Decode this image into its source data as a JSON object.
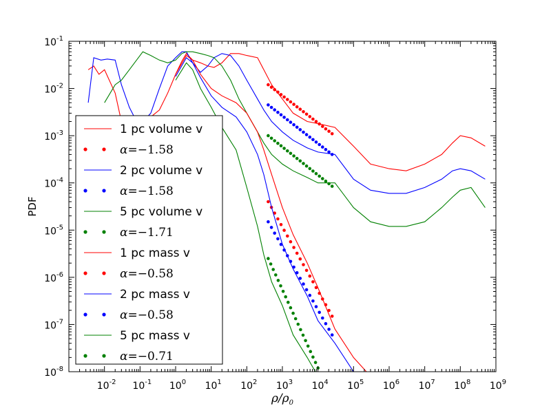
{
  "chart_data": {
    "type": "line",
    "xscale": "log",
    "yscale": "log",
    "xlim": [
      0.001,
      1000000000
    ],
    "ylim": [
      1e-08,
      0.1
    ],
    "xlabel": "ρ/ρ0",
    "ylabel": "PDF",
    "x_ticks": [
      {
        "base": "10",
        "exp": "-2",
        "value": 0.01
      },
      {
        "base": "10",
        "exp": "-1",
        "value": 0.1
      },
      {
        "base": "10",
        "exp": "0",
        "value": 1
      },
      {
        "base": "10",
        "exp": "1",
        "value": 10
      },
      {
        "base": "10",
        "exp": "2",
        "value": 100
      },
      {
        "base": "10",
        "exp": "3",
        "value": 1000
      },
      {
        "base": "10",
        "exp": "4",
        "value": 10000
      },
      {
        "base": "10",
        "exp": "5",
        "value": 100000
      },
      {
        "base": "10",
        "exp": "6",
        "value": 1000000
      },
      {
        "base": "10",
        "exp": "7",
        "value": 10000000
      },
      {
        "base": "10",
        "exp": "8",
        "value": 100000000
      },
      {
        "base": "10",
        "exp": "9",
        "value": 1000000000
      }
    ],
    "y_ticks": [
      {
        "base": "10",
        "exp": "-8",
        "value": 1e-08
      },
      {
        "base": "10",
        "exp": "-7",
        "value": 1e-07
      },
      {
        "base": "10",
        "exp": "-6",
        "value": 1e-06
      },
      {
        "base": "10",
        "exp": "-5",
        "value": 1e-05
      },
      {
        "base": "10",
        "exp": "-4",
        "value": 0.0001
      },
      {
        "base": "10",
        "exp": "-3",
        "value": 0.001
      },
      {
        "base": "10",
        "exp": "-2",
        "value": 0.01
      },
      {
        "base": "10",
        "exp": "-1",
        "value": 0.1
      }
    ],
    "legend": {
      "location": "lower-left"
    },
    "series": [
      {
        "name": "1 pc volume v",
        "style": "line",
        "color": "#ff0000",
        "x": [
          0.0035,
          0.005,
          0.007,
          0.01,
          0.02,
          0.03,
          0.05,
          0.08,
          0.12,
          0.2,
          0.35,
          0.6,
          1,
          1.5,
          2,
          3,
          5,
          8,
          12,
          20,
          35,
          60,
          100,
          200,
          300,
          500,
          1000,
          2000,
          5000,
          10000,
          30000,
          100000,
          300000,
          1000000,
          3000000,
          10000000,
          30000000,
          60000000,
          100000000,
          200000000,
          500000000
        ],
        "y": [
          0.025,
          0.03,
          0.02,
          0.025,
          0.008,
          0.002,
          0.0015,
          0.0015,
          0.0015,
          0.0025,
          0.0035,
          0.008,
          0.02,
          0.038,
          0.055,
          0.04,
          0.035,
          0.03,
          0.028,
          0.035,
          0.055,
          0.055,
          0.05,
          0.045,
          0.025,
          0.012,
          0.006,
          0.003,
          0.002,
          0.0018,
          0.0015,
          0.0006,
          0.00025,
          0.0002,
          0.00018,
          0.00025,
          0.0004,
          0.0007,
          0.001,
          0.0009,
          0.0006
        ]
      },
      {
        "name": "α=−1.58",
        "label_alpha": "α",
        "label_value": "=−1.58",
        "style": "dots",
        "color": "#ff0000",
        "slope": -1.58,
        "x": [
          400,
          25000
        ],
        "y": [
          0.012,
          0.0011
        ]
      },
      {
        "name": "2 pc volume v",
        "style": "line",
        "color": "#0000ff",
        "x": [
          0.0035,
          0.005,
          0.008,
          0.012,
          0.02,
          0.03,
          0.05,
          0.08,
          0.12,
          0.2,
          0.35,
          0.6,
          1,
          1.5,
          2,
          3,
          5,
          8,
          12,
          20,
          35,
          60,
          100,
          200,
          300,
          500,
          1000,
          2000,
          5000,
          10000,
          30000,
          100000,
          300000,
          1000000,
          3000000,
          10000000,
          30000000,
          60000000,
          100000000,
          200000000,
          500000000
        ],
        "y": [
          0.005,
          0.045,
          0.04,
          0.042,
          0.04,
          0.012,
          0.004,
          0.002,
          0.002,
          0.003,
          0.01,
          0.03,
          0.045,
          0.06,
          0.06,
          0.035,
          0.022,
          0.03,
          0.045,
          0.055,
          0.05,
          0.03,
          0.015,
          0.006,
          0.0035,
          0.002,
          0.0012,
          0.0008,
          0.00055,
          0.00045,
          0.0004,
          0.00012,
          7e-05,
          6e-05,
          6e-05,
          8e-05,
          0.00012,
          0.00018,
          0.0002,
          0.00018,
          0.00012
        ]
      },
      {
        "name": "α=−1.58",
        "label_alpha": "α",
        "label_value": "=−1.58",
        "style": "dots",
        "color": "#0000ff",
        "slope": -1.58,
        "x": [
          400,
          25000
        ],
        "y": [
          0.0045,
          0.0004
        ]
      },
      {
        "name": "5 pc volume v",
        "style": "line",
        "color": "#008000",
        "x": [
          0.01,
          0.02,
          0.03,
          0.05,
          0.08,
          0.12,
          0.2,
          0.35,
          0.6,
          1,
          1.5,
          2,
          3,
          5,
          8,
          12,
          20,
          35,
          60,
          100,
          200,
          300,
          500,
          1000,
          2000,
          5000,
          10000,
          30000,
          100000,
          300000,
          1000000,
          3000000,
          10000000,
          30000000,
          60000000,
          100000000,
          200000000,
          500000000
        ],
        "y": [
          0.005,
          0.012,
          0.015,
          0.025,
          0.04,
          0.06,
          0.05,
          0.04,
          0.035,
          0.04,
          0.055,
          0.06,
          0.06,
          0.055,
          0.05,
          0.045,
          0.03,
          0.015,
          0.006,
          0.003,
          0.0012,
          0.0007,
          0.0004,
          0.00025,
          0.00018,
          0.00013,
          0.0001,
          0.0001,
          3e-05,
          1.5e-05,
          1.2e-05,
          1.2e-05,
          1.5e-05,
          3e-05,
          5e-05,
          7e-05,
          8e-05,
          3e-05
        ]
      },
      {
        "name": "α=−1.71",
        "label_alpha": "α",
        "label_value": "=−1.71",
        "style": "dots",
        "color": "#008000",
        "slope": -1.71,
        "x": [
          400,
          25000
        ],
        "y": [
          0.001,
          8.5e-05
        ]
      },
      {
        "name": "1 pc mass v",
        "style": "line",
        "color": "#ff0000",
        "x": [
          1,
          2,
          3,
          5,
          10,
          20,
          50,
          100,
          200,
          300,
          500,
          1000,
          2000,
          5000,
          10000,
          30000,
          100000,
          300000
        ],
        "y": [
          0.02,
          0.05,
          0.04,
          0.02,
          0.01,
          0.007,
          0.005,
          0.003,
          0.0012,
          0.0005,
          0.00015,
          3e-05,
          8e-06,
          2e-06,
          6e-07,
          8e-08,
          2e-08,
          8e-09
        ]
      },
      {
        "name": "α=−0.58",
        "label_alpha": "α",
        "label_value": "=−0.58",
        "style": "dots",
        "color": "#ff0000",
        "slope": -0.58,
        "x": [
          400,
          25000
        ],
        "y": [
          4e-05,
          1.5e-07
        ]
      },
      {
        "name": "2 pc mass v",
        "style": "line",
        "color": "#0000ff",
        "x": [
          1,
          2,
          3,
          5,
          10,
          20,
          50,
          100,
          200,
          300,
          500,
          1000,
          2000,
          5000,
          10000,
          30000,
          100000
        ],
        "y": [
          0.018,
          0.045,
          0.035,
          0.017,
          0.007,
          0.004,
          0.0025,
          0.0012,
          0.0004,
          0.00015,
          3e-05,
          5e-06,
          1.5e-06,
          4e-07,
          1.2e-07,
          4e-08,
          1e-08
        ]
      },
      {
        "name": "α=−0.58",
        "label_alpha": "α",
        "label_value": "=−0.58",
        "style": "dots",
        "color": "#0000ff",
        "slope": -0.58,
        "x": [
          400,
          25000
        ],
        "y": [
          1.5e-05,
          6e-08
        ]
      },
      {
        "name": "5 pc mass v",
        "style": "line",
        "color": "#008000",
        "x": [
          1,
          2,
          3,
          5,
          10,
          20,
          50,
          100,
          200,
          300,
          500,
          1000,
          2000,
          5000,
          10000,
          20000
        ],
        "y": [
          0.015,
          0.035,
          0.025,
          0.01,
          0.004,
          0.0015,
          0.0005,
          8e-05,
          1.2e-05,
          3e-06,
          8e-07,
          2.5e-07,
          6e-08,
          2e-08,
          8e-09,
          5e-09
        ]
      },
      {
        "name": "α=−0.71",
        "label_alpha": "α",
        "label_value": "=−0.71",
        "style": "dots",
        "color": "#008000",
        "slope": -0.71,
        "x": [
          400,
          10000
        ],
        "y": [
          2.5e-06,
          1.2e-08
        ]
      }
    ]
  }
}
